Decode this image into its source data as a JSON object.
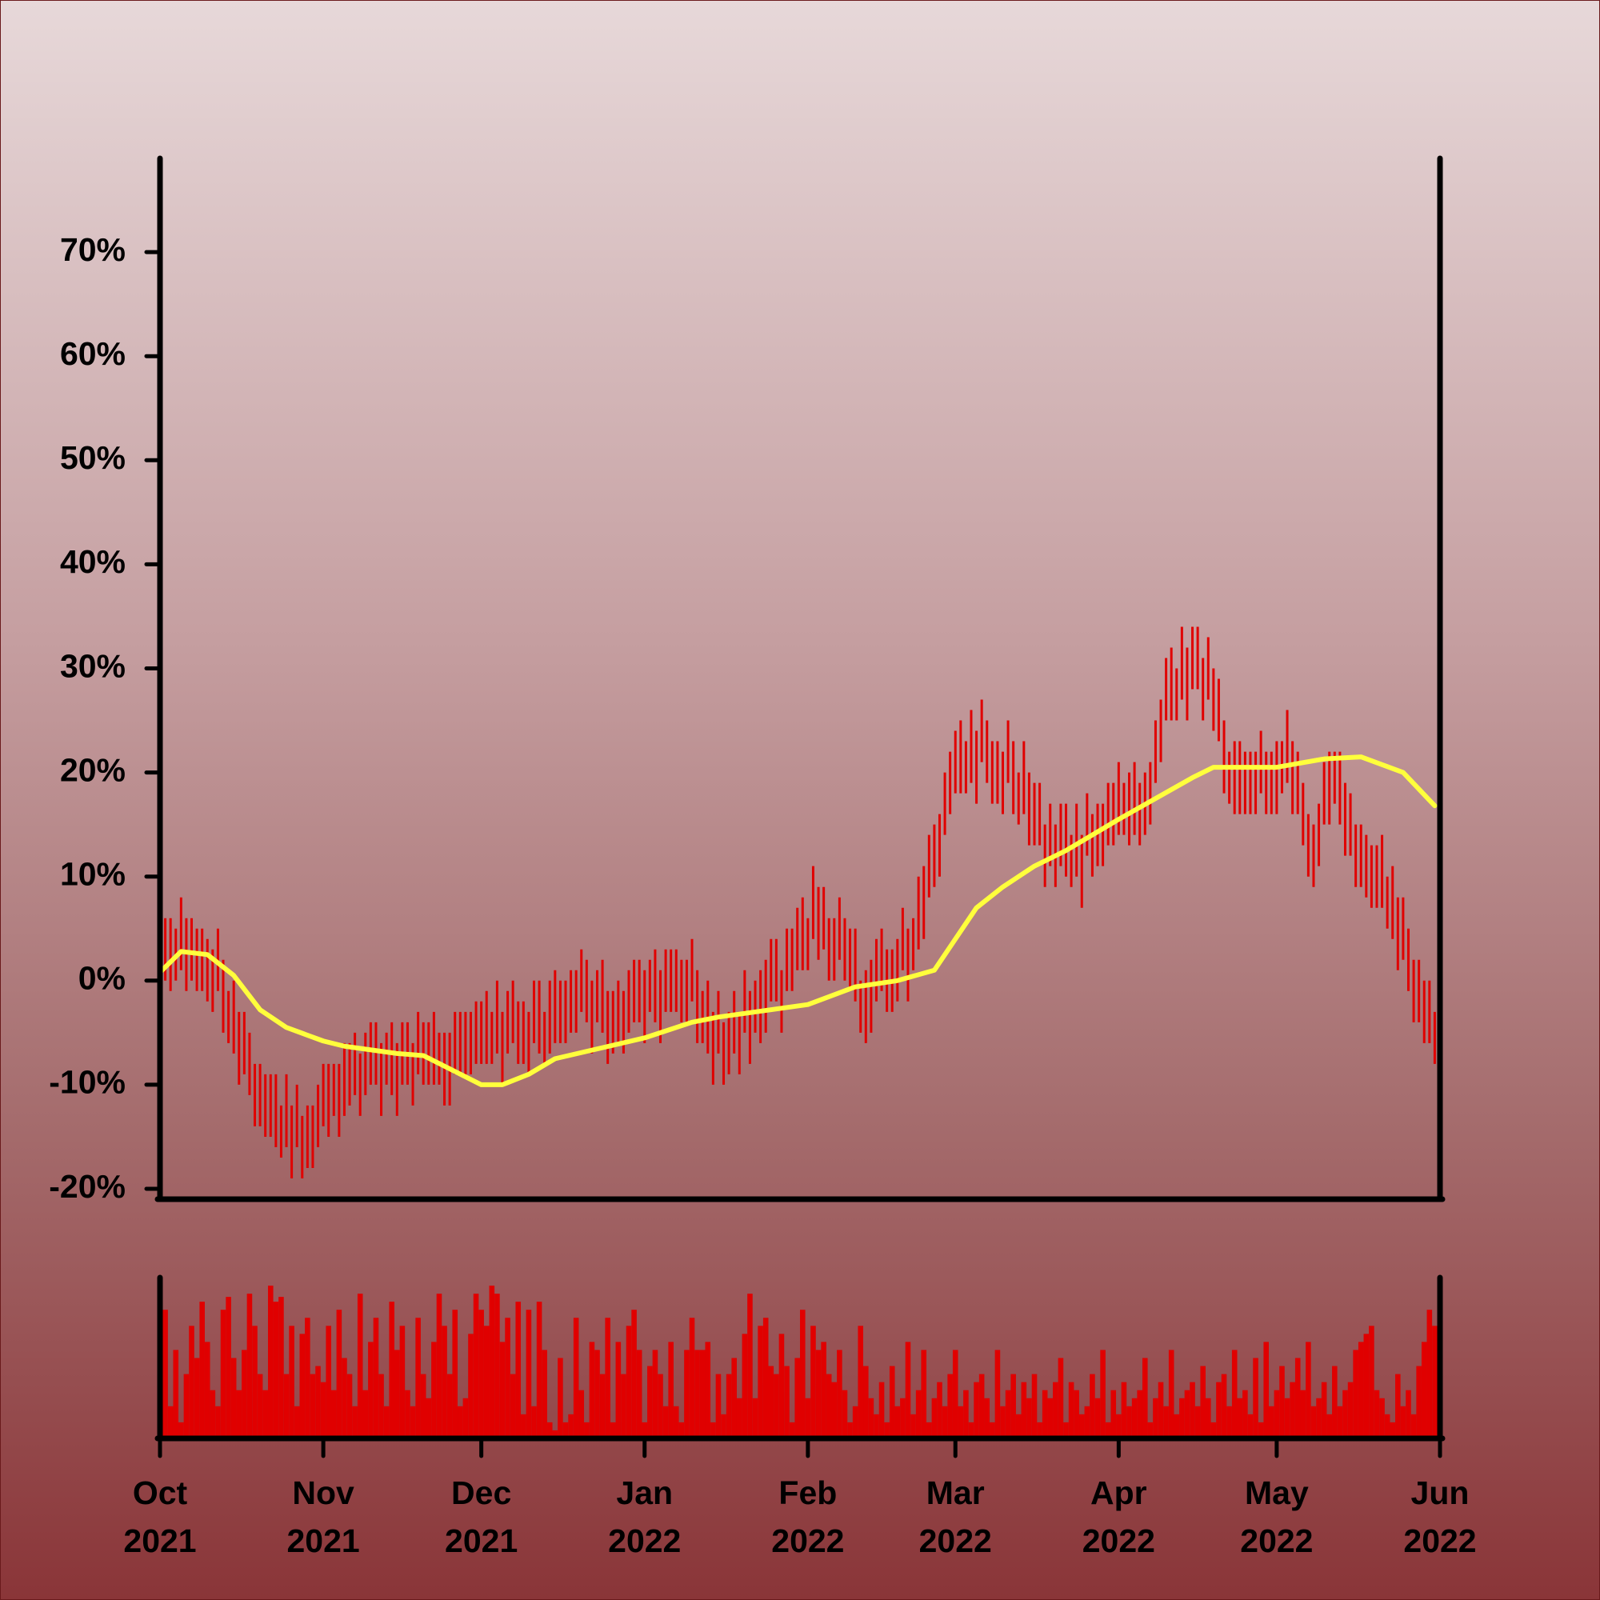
{
  "chart_data": {
    "type": "range",
    "x": [
      0,
      1,
      2,
      3,
      4,
      5,
      6,
      7,
      8,
      9,
      10,
      11,
      12,
      13,
      14,
      15,
      16,
      17,
      18,
      19,
      20,
      21,
      22,
      23,
      24,
      25,
      26,
      27,
      28,
      29,
      30,
      31,
      32,
      33,
      34,
      35,
      36,
      37,
      38,
      39,
      40,
      41,
      42,
      43,
      44,
      45,
      46,
      47,
      48,
      49,
      50,
      51,
      52,
      53,
      54,
      55,
      56,
      57,
      58,
      59,
      60,
      61,
      62,
      63,
      64,
      65,
      66,
      67,
      68,
      69,
      70,
      71,
      72,
      73,
      74,
      75,
      76,
      77,
      78,
      79,
      80,
      81,
      82,
      83,
      84,
      85,
      86,
      87,
      88,
      89,
      90,
      91,
      92,
      93,
      94,
      95,
      96,
      97,
      98,
      99,
      100,
      101,
      102,
      103,
      104,
      105,
      106,
      107,
      108,
      109,
      110,
      111,
      112,
      113,
      114,
      115,
      116,
      117,
      118,
      119,
      120,
      121,
      122,
      123,
      124,
      125,
      126,
      127,
      128,
      129,
      130,
      131,
      132,
      133,
      134,
      135,
      136,
      137,
      138,
      139,
      140,
      141,
      142,
      143,
      144,
      145,
      146,
      147,
      148,
      149,
      150,
      151,
      152,
      153,
      154,
      155,
      156,
      157,
      158,
      159,
      160,
      161,
      162,
      163,
      164,
      165,
      166,
      167,
      168,
      169,
      170,
      171,
      172,
      173,
      174,
      175,
      176,
      177,
      178,
      179,
      180,
      181,
      182,
      183,
      184,
      185,
      186,
      187,
      188,
      189,
      190,
      191,
      192,
      193,
      194,
      195,
      196,
      197,
      198,
      199,
      200,
      201,
      202,
      203,
      204,
      205,
      206,
      207,
      208,
      209,
      210,
      211,
      212,
      213,
      214,
      215,
      216,
      217,
      218,
      219,
      220,
      221,
      222,
      223,
      224,
      225,
      226,
      227,
      228,
      229,
      230,
      231,
      232,
      233,
      234,
      235,
      236,
      237,
      238,
      239,
      240,
      241,
      242
    ],
    "high": [
      4,
      6,
      6,
      5,
      8,
      6,
      6,
      5,
      5,
      4,
      3,
      5,
      2,
      -1,
      0,
      -3,
      -3,
      -5,
      -8,
      -8,
      -9,
      -9,
      -9,
      -12,
      -9,
      -12,
      -10,
      -13,
      -12,
      -12,
      -10,
      -8,
      -8,
      -8,
      -8,
      -6,
      -6,
      -5,
      -7,
      -5,
      -4,
      -4,
      -6,
      -5,
      -4,
      -6,
      -4,
      -4,
      -6,
      -3,
      -4,
      -4,
      -3,
      -5,
      -5,
      -5,
      -3,
      -3,
      -3,
      -3,
      -2,
      -2,
      -1,
      -3,
      0,
      -3,
      -1,
      0,
      -2,
      -2,
      -3,
      0,
      0,
      -3,
      0,
      1,
      0,
      0,
      1,
      1,
      3,
      2,
      0,
      1,
      2,
      -1,
      -1,
      0,
      -1,
      1,
      2,
      2,
      1,
      2,
      3,
      1,
      3,
      3,
      3,
      2,
      2,
      4,
      1,
      -1,
      0,
      -3,
      -1,
      -4,
      -3,
      -1,
      -3,
      1,
      -1,
      0,
      1,
      2,
      4,
      4,
      1,
      5,
      5,
      7,
      8,
      6,
      11,
      9,
      9,
      6,
      6,
      8,
      6,
      5,
      5,
      0,
      1,
      2,
      4,
      5,
      3,
      3,
      4,
      7,
      5,
      6,
      10,
      11,
      14,
      15,
      16,
      20,
      22,
      24,
      25,
      23,
      26,
      24,
      27,
      25,
      23,
      23,
      22,
      25,
      23,
      20,
      23,
      20,
      19,
      19,
      15,
      17,
      15,
      17,
      17,
      14,
      17,
      14,
      18,
      16,
      17,
      17,
      19,
      19,
      21,
      19,
      20,
      21,
      19,
      20,
      21,
      25,
      27,
      31,
      32,
      30,
      34,
      32,
      34,
      34,
      31,
      33,
      30,
      29,
      25,
      22,
      23,
      23,
      22,
      22,
      22,
      24,
      22,
      22,
      23,
      23,
      26,
      23,
      22,
      19,
      16,
      15,
      17,
      21,
      22,
      22,
      22,
      19,
      18,
      15,
      15,
      14,
      13,
      13,
      14,
      10,
      11,
      8,
      8,
      5,
      2,
      2,
      0,
      0,
      -3
    ],
    "low": [
      -2,
      0,
      -1,
      0,
      1,
      -1,
      0,
      -1,
      -1,
      -2,
      -3,
      -1,
      -5,
      -6,
      -7,
      -10,
      -9,
      -11,
      -14,
      -14,
      -15,
      -15,
      -16,
      -17,
      -16,
      -19,
      -16,
      -19,
      -18,
      -18,
      -16,
      -14,
      -15,
      -13,
      -15,
      -13,
      -12,
      -11,
      -13,
      -11,
      -10,
      -10,
      -13,
      -10,
      -11,
      -13,
      -10,
      -10,
      -12,
      -9,
      -10,
      -10,
      -10,
      -10,
      -12,
      -12,
      -9,
      -9,
      -9,
      -9,
      -8,
      -8,
      -8,
      -8,
      -7,
      -10,
      -7,
      -6,
      -8,
      -8,
      -9,
      -6,
      -7,
      -8,
      -7,
      -6,
      -6,
      -6,
      -5,
      -5,
      -3,
      -4,
      -7,
      -4,
      -5,
      -8,
      -7,
      -6,
      -7,
      -5,
      -4,
      -4,
      -6,
      -3,
      -4,
      -6,
      -3,
      -3,
      -3,
      -4,
      -4,
      -2,
      -6,
      -6,
      -7,
      -10,
      -7,
      -10,
      -9,
      -7,
      -9,
      -5,
      -8,
      -5,
      -6,
      -5,
      -2,
      -2,
      -5,
      -1,
      -1,
      1,
      1,
      1,
      4,
      2,
      3,
      0,
      0,
      2,
      0,
      -1,
      -2,
      -5,
      -6,
      -5,
      -2,
      -1,
      -3,
      -3,
      -2,
      1,
      -2,
      1,
      3,
      4,
      8,
      9,
      10,
      14,
      16,
      18,
      18,
      18,
      19,
      17,
      21,
      19,
      17,
      17,
      16,
      19,
      16,
      15,
      16,
      13,
      13,
      13,
      9,
      11,
      9,
      11,
      10,
      9,
      10,
      7,
      12,
      10,
      11,
      11,
      13,
      13,
      14,
      14,
      13,
      14,
      13,
      14,
      15,
      19,
      21,
      25,
      25,
      25,
      27,
      25,
      28,
      28,
      25,
      27,
      24,
      23,
      18,
      17,
      16,
      16,
      16,
      16,
      16,
      18,
      16,
      16,
      16,
      18,
      19,
      16,
      16,
      13,
      10,
      9,
      11,
      15,
      15,
      17,
      15,
      12,
      12,
      9,
      9,
      8,
      7,
      7,
      7,
      5,
      4,
      1,
      2,
      -1,
      -4,
      -4,
      -6,
      -6,
      -8
    ],
    "color": "#e00000",
    "moving_average": {
      "type": "line",
      "color": "#ffff3c",
      "x": [
        0,
        4,
        9,
        14,
        19,
        24,
        31,
        35,
        45,
        50,
        61,
        65,
        70,
        75,
        92,
        101,
        106,
        123,
        132,
        140,
        147,
        151,
        155,
        160,
        166,
        172,
        182,
        196,
        200,
        212,
        221,
        228,
        236,
        242
      ],
      "values": [
        0.8,
        2.8,
        2.5,
        0.5,
        -2.8,
        -4.5,
        -5.8,
        -6.3,
        -7,
        -7.2,
        -10,
        -10,
        -9,
        -7.5,
        -5.5,
        -4,
        -3.5,
        -2.3,
        -0.6,
        0,
        1,
        4,
        7,
        9,
        11,
        12.5,
        15.5,
        19.5,
        20.5,
        20.5,
        21.3,
        21.5,
        20,
        16.8
      ]
    },
    "volume": {
      "type": "bar",
      "color": "#e00000",
      "ylim": [
        0,
        100
      ],
      "values": [
        30,
        80,
        20,
        55,
        10,
        40,
        70,
        50,
        85,
        60,
        30,
        20,
        80,
        88,
        50,
        30,
        55,
        90,
        70,
        40,
        30,
        95,
        85,
        88,
        40,
        70,
        20,
        65,
        75,
        40,
        45,
        35,
        70,
        30,
        80,
        50,
        40,
        20,
        90,
        30,
        60,
        75,
        40,
        20,
        85,
        55,
        70,
        30,
        20,
        75,
        40,
        25,
        60,
        90,
        70,
        40,
        80,
        20,
        25,
        65,
        90,
        80,
        70,
        95,
        90,
        60,
        75,
        40,
        85,
        15,
        80,
        20,
        85,
        55,
        10,
        5,
        50,
        10,
        15,
        75,
        30,
        10,
        60,
        55,
        40,
        75,
        10,
        60,
        40,
        70,
        80,
        55,
        10,
        45,
        55,
        40,
        20,
        60,
        20,
        10,
        55,
        75,
        55,
        55,
        60,
        10,
        40,
        15,
        40,
        50,
        25,
        65,
        90,
        25,
        70,
        75,
        45,
        40,
        65,
        45,
        10,
        50,
        80,
        25,
        70,
        55,
        60,
        40,
        35,
        55,
        30,
        10,
        20,
        70,
        45,
        25,
        15,
        35,
        10,
        45,
        20,
        25,
        60,
        15,
        30,
        55,
        10,
        25,
        35,
        20,
        40,
        55,
        20,
        30,
        10,
        35,
        40,
        25,
        10,
        55,
        20,
        30,
        40,
        15,
        35,
        25,
        40,
        10,
        30,
        25,
        35,
        50,
        10,
        35,
        30,
        15,
        20,
        40,
        25,
        55,
        10,
        30,
        15,
        35,
        20,
        25,
        30,
        50,
        10,
        25,
        35,
        20,
        55,
        15,
        25,
        30,
        35,
        20,
        45,
        25,
        10,
        35,
        40,
        20,
        55,
        25,
        30,
        15,
        50,
        10,
        60,
        20,
        30,
        45,
        25,
        35,
        50,
        30,
        60,
        20,
        25,
        35,
        15,
        45,
        20,
        30,
        35,
        55,
        60,
        65,
        70,
        30,
        25,
        15,
        10,
        40,
        20,
        30,
        15,
        45,
        60,
        80,
        70
      ]
    },
    "xlim": [
      0,
      243
    ],
    "xticks": [
      {
        "value": 0,
        "label": "Oct 2021"
      },
      {
        "value": 31,
        "label": "Nov 2021"
      },
      {
        "value": 61,
        "label": "Dec 2021"
      },
      {
        "value": 92,
        "label": "Jan 2022"
      },
      {
        "value": 123,
        "label": "Feb 2022"
      },
      {
        "value": 151,
        "label": "Mar 2022"
      },
      {
        "value": 182,
        "label": "Apr 2022"
      },
      {
        "value": 212,
        "label": "May 2022"
      },
      {
        "value": 243,
        "label": "Jun 2022"
      }
    ],
    "ylim": [
      -21,
      79
    ],
    "yticks": [
      {
        "value": -20,
        "label": "-20%"
      },
      {
        "value": -10,
        "label": "-10%"
      },
      {
        "value": 0,
        "label": "0%"
      },
      {
        "value": 10,
        "label": "10%"
      },
      {
        "value": 20,
        "label": "20%"
      },
      {
        "value": 30,
        "label": "30%"
      },
      {
        "value": 40,
        "label": "40%"
      },
      {
        "value": 50,
        "label": "50%"
      },
      {
        "value": 60,
        "label": "60%"
      },
      {
        "value": 70,
        "label": "70%"
      }
    ]
  }
}
